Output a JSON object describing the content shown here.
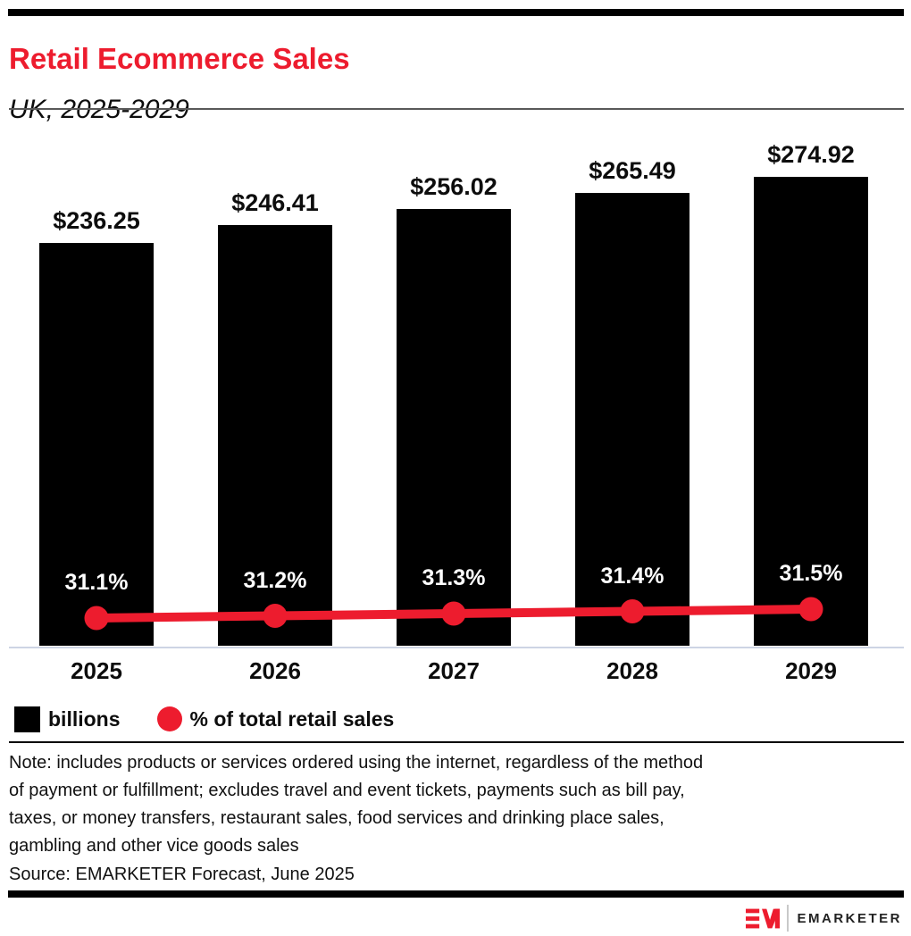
{
  "header": {
    "title": "Retail Ecommerce Sales",
    "subtitle": "UK, 2025-2029"
  },
  "chart_data": {
    "type": "bar",
    "categories": [
      "2025",
      "2026",
      "2027",
      "2028",
      "2029"
    ],
    "series": [
      {
        "name": "billions",
        "type": "bar",
        "values": [
          236.25,
          246.41,
          256.02,
          265.49,
          274.92
        ],
        "labels": [
          "$236.25",
          "$246.41",
          "$256.02",
          "$265.49",
          "$274.92"
        ],
        "color": "#000000"
      },
      {
        "name": "% of total retail sales",
        "type": "line",
        "values": [
          31.1,
          31.2,
          31.3,
          31.4,
          31.5
        ],
        "labels": [
          "31.1%",
          "31.2%",
          "31.3%",
          "31.4%",
          "31.5%"
        ],
        "color": "#ed1c2e"
      }
    ],
    "title": "Retail Ecommerce Sales",
    "subtitle": "UK, 2025-2029",
    "xlabel": "",
    "ylabel": "",
    "grid": false,
    "legend_position": "bottom-left"
  },
  "legend": {
    "bar_label": "billions",
    "line_label": "% of total retail sales"
  },
  "note": "Note: includes products or services ordered using the internet, regardless of the method\nof payment or fulfillment; excludes travel and event tickets, payments such as bill pay,\ntaxes, or money transfers, restaurant sales, food services and drinking place sales,\ngambling and other vice goods sales",
  "source": "Source: EMARKETER Forecast, June 2025",
  "branding": {
    "logo_monogram": "EM",
    "logo_text": "EMARKETER"
  },
  "colors": {
    "accent_red": "#ed1c2e",
    "bar_black": "#000000",
    "baseline_gray": "#cdd4e4"
  }
}
